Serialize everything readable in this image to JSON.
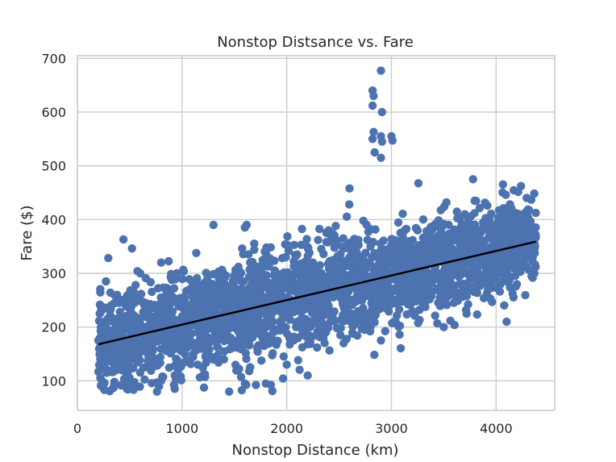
{
  "chart_data": {
    "type": "scatter",
    "title": "Nonstop Distsance vs. Fare",
    "xlabel": "Nonstop Distance (km)",
    "ylabel": "Fare ($)",
    "xlim": [
      0,
      4560
    ],
    "ylim": [
      45,
      705
    ],
    "xticks": [
      0,
      1000,
      2000,
      3000,
      4000
    ],
    "xtick_labels": [
      "0",
      "1000",
      "2000",
      "3000",
      "4000"
    ],
    "yticks": [
      100,
      200,
      300,
      400,
      500,
      600,
      700
    ],
    "ytick_labels": [
      "100",
      "200",
      "300",
      "400",
      "500",
      "600",
      "700"
    ],
    "grid": true,
    "point_color": "#4c72b0",
    "line_color": "#000000",
    "series": [
      {
        "type": "scatter",
        "x": [
          200,
          230,
          260,
          300,
          320,
          350,
          380,
          420,
          440,
          480,
          520,
          560,
          600,
          650,
          700,
          740,
          780,
          800,
          850,
          900,
          950,
          1000,
          1050,
          1100,
          1150,
          1200,
          1250,
          1300,
          1350,
          1400,
          1450,
          1500,
          1550,
          1600,
          1650,
          1700,
          1750,
          1800,
          1850,
          1900,
          1950,
          2000,
          2050,
          2100,
          2150,
          2200,
          2250,
          2300,
          2350,
          2400,
          2450,
          2500,
          2550,
          2600,
          2650,
          2700,
          2750,
          2800,
          2850,
          2900,
          2950,
          3000,
          3050,
          3100,
          3150,
          3200,
          3250,
          3300,
          3350,
          3400,
          3450,
          3500,
          3550,
          3600,
          3650,
          3700,
          3750,
          3800,
          3850,
          3900,
          3950,
          4000,
          4050,
          4100,
          4150,
          4200,
          4250,
          4300,
          4350,
          4380,
          420,
          800,
          1200,
          1600,
          2000,
          2400,
          2800,
          3200,
          3600,
          4000,
          2820,
          2830,
          2900,
          2910,
          2820,
          2830,
          2900,
          2820,
          2840,
          3000,
          3010,
          2910,
          2900,
          3780,
          2600,
          1300,
          1600,
          350,
          760,
          1450,
          1800,
          2200,
          2900,
          3500,
          4100
        ],
        "y": [
          175,
          200,
          210,
          165,
          240,
          190,
          260,
          220,
          363,
          180,
          250,
          145,
          300,
          200,
          210,
          240,
          90,
          320,
          260,
          170,
          300,
          220,
          190,
          280,
          130,
          230,
          250,
          180,
          300,
          140,
          270,
          220,
          250,
          190,
          320,
          210,
          280,
          200,
          240,
          300,
          230,
          250,
          280,
          210,
          300,
          260,
          320,
          240,
          290,
          380,
          260,
          300,
          240,
          330,
          280,
          300,
          260,
          350,
          270,
          330,
          310,
          300,
          360,
          280,
          330,
          310,
          380,
          300,
          340,
          320,
          390,
          300,
          350,
          330,
          280,
          410,
          300,
          360,
          340,
          310,
          390,
          330,
          300,
          370,
          350,
          320,
          380,
          340,
          330,
          370,
          120,
          100,
          110,
          95,
          130,
          240,
          200,
          230,
          260,
          290,
          640,
          630,
          677,
          600,
          612,
          563,
          555,
          550,
          525,
          555,
          547,
          545,
          515,
          475,
          458,
          390,
          385,
          130,
          80,
          80,
          95,
          110,
          175,
          200,
          210
        ],
        "cloud": true
      },
      {
        "type": "line",
        "x": [
          200,
          4380
        ],
        "y": [
          168,
          359
        ]
      }
    ]
  }
}
